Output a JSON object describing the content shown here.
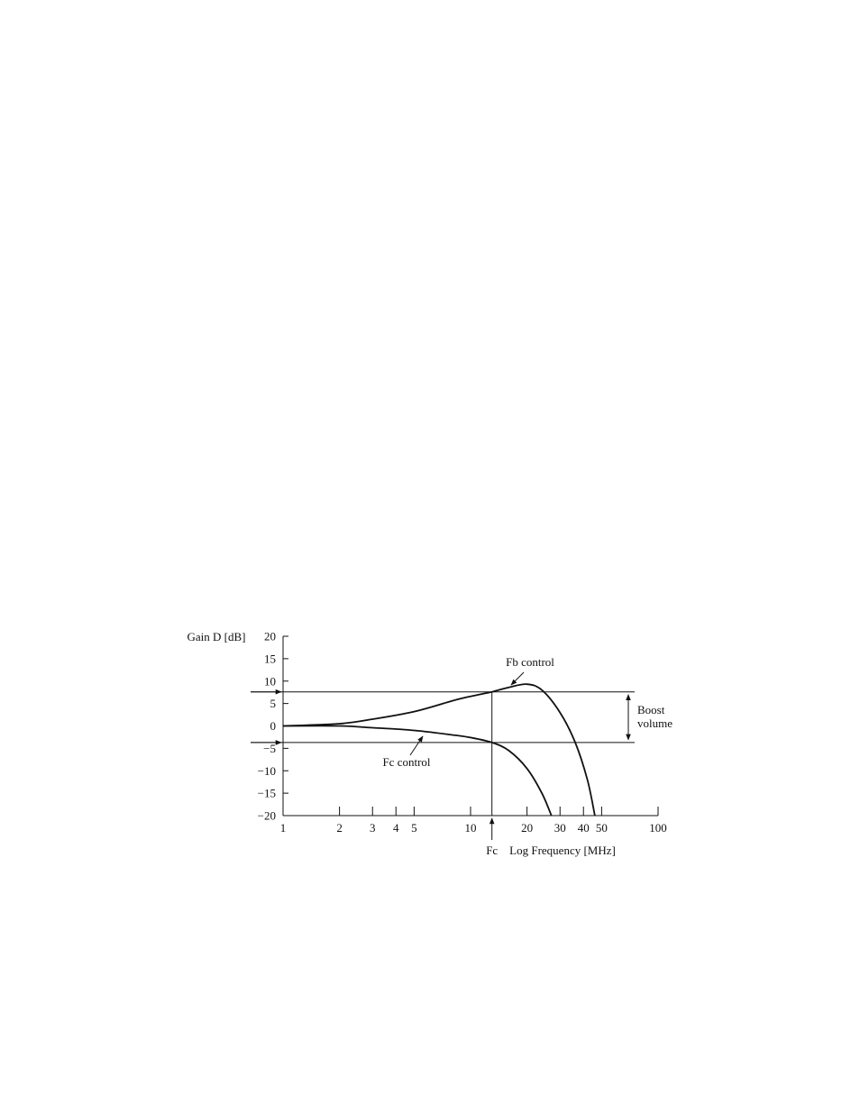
{
  "chart_data": {
    "type": "line",
    "ylabel": "Gain D [dB]",
    "xlabel": "Log Frequency [MHz]",
    "xscale": "log",
    "xlim": [
      1,
      100
    ],
    "ylim": [
      -20,
      20
    ],
    "xticks": [
      1,
      2,
      3,
      4,
      5,
      10,
      20,
      30,
      40,
      50,
      100
    ],
    "xtick_labels": [
      "1",
      "2",
      "3",
      "4",
      "5",
      "10",
      "20",
      "30",
      "40",
      "50",
      "100"
    ],
    "yticks": [
      20,
      15,
      10,
      5,
      0,
      -5,
      -10,
      -15,
      -20
    ],
    "ytick_labels": [
      "20",
      "15",
      "10",
      "5",
      "0",
      "−5",
      "−10",
      "−15",
      "−20"
    ],
    "grid": false,
    "series": [
      {
        "name": "Fb control",
        "x": [
          1,
          2,
          3,
          5,
          8,
          10,
          13,
          16,
          20,
          24,
          30,
          36,
          42,
          46
        ],
        "y": [
          0,
          0.5,
          1.5,
          3.2,
          5.6,
          6.6,
          7.6,
          8.6,
          9.3,
          8.0,
          3.0,
          -3.5,
          -12.0,
          -20.0
        ]
      },
      {
        "name": "Fc control",
        "x": [
          1,
          2,
          3,
          5,
          8,
          10,
          13,
          16,
          20,
          24,
          27
        ],
        "y": [
          0,
          0,
          -0.4,
          -1.0,
          -2.0,
          -2.6,
          -3.7,
          -5.5,
          -9.5,
          -15.0,
          -20.0
        ]
      }
    ],
    "annotations": {
      "fb_label": "Fb control",
      "fc_label": "Fc control",
      "fc_marker": "Fc",
      "boost_label_line1": "Boost",
      "boost_label_line2": "volume"
    },
    "reference_lines": {
      "fc_frequency": 13,
      "upper_level": 7.6,
      "lower_level": -3.7
    }
  }
}
